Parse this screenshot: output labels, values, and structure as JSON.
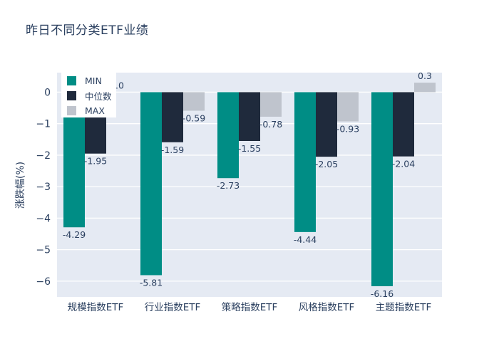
{
  "page": {
    "background": "#ffffff",
    "text_color": "#2a3f5f"
  },
  "chart_data": {
    "type": "bar",
    "title": "昨日不同分类ETF业绩",
    "xlabel": "",
    "ylabel": "涨跌幅(%)",
    "categories": [
      "规模指数ETF",
      "行业指数ETF",
      "策略指数ETF",
      "风格指数ETF",
      "主题指数ETF"
    ],
    "series": [
      {
        "name": "MIN",
        "color": "#008D85",
        "values": [
          -4.29,
          -5.81,
          -2.73,
          -4.44,
          -6.16
        ],
        "labels": [
          "-4.29",
          "-5.81",
          "-2.73",
          "-4.44",
          "-6.16"
        ]
      },
      {
        "name": "中位数",
        "color": "#1F2A3C",
        "values": [
          -1.95,
          -1.59,
          -1.55,
          -2.05,
          -2.04
        ],
        "labels": [
          "-1.95",
          "-1.59",
          "-1.55",
          "-2.05",
          "-2.04"
        ]
      },
      {
        "name": "MAX",
        "color": "#BFC4CD",
        "values": [
          0.0,
          -0.59,
          -0.78,
          -0.93,
          0.3
        ],
        "labels": [
          "0.0",
          "-0.59",
          "-0.78",
          "-0.93",
          "0.3"
        ]
      }
    ],
    "yticks": [
      {
        "value": 0,
        "label": "0"
      },
      {
        "value": -1,
        "label": "−1"
      },
      {
        "value": -2,
        "label": "−2"
      },
      {
        "value": -3,
        "label": "−3"
      },
      {
        "value": -4,
        "label": "−4"
      },
      {
        "value": -5,
        "label": "−5"
      },
      {
        "value": -6,
        "label": "−6"
      }
    ],
    "ylim": [
      -6.5,
      0.62
    ],
    "grid": true,
    "plot_bg": "#E5EAF3",
    "grid_color": "#FFFFFF",
    "legend_position": "top-left-inside"
  }
}
